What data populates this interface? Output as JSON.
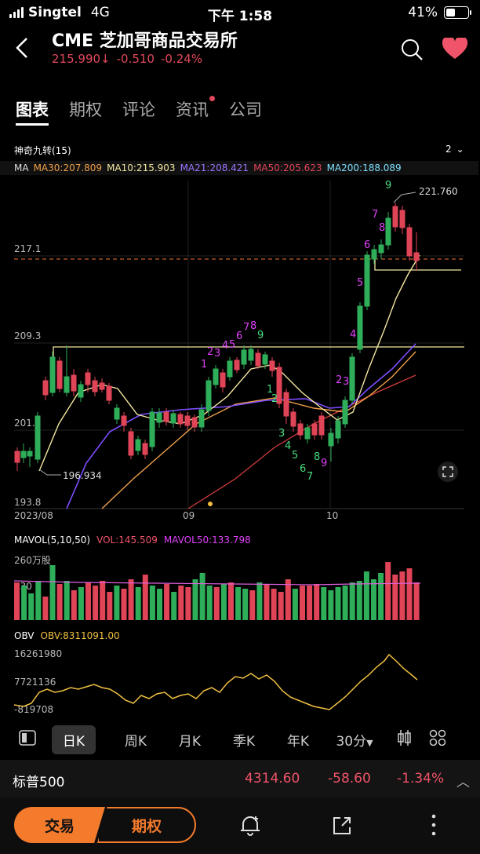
{
  "status": {
    "carrier": "Singtel",
    "network": "4G",
    "time": "下午 1:58",
    "battery": "41%",
    "battery_level": 0.41
  },
  "header": {
    "title": "CME 芝加哥商品交易所",
    "price": "215.990",
    "change": "-0.510",
    "change_pct": "-0.24%"
  },
  "tabs": [
    {
      "label": "图表"
    },
    {
      "label": "期权"
    },
    {
      "label": "评论"
    },
    {
      "label": "资讯"
    },
    {
      "label": "公司"
    }
  ],
  "indicator": {
    "name": "神奇九转(15)",
    "count": "2"
  },
  "ma": {
    "label": "MA",
    "ma30": "MA30:207.809",
    "ma10": "MA10:215.903",
    "ma21": "MA21:208.421",
    "ma50": "MA50:205.623",
    "ma200": "MA200:188.089"
  },
  "price_chart": {
    "y_ticks": [
      "217.1",
      "209.3",
      "201.6",
      "193.8"
    ],
    "x_ticks": [
      "2023/08",
      "09",
      "10"
    ],
    "high_label": "221.760",
    "low_label": "196.934",
    "colors": {
      "up": "#2fae5a",
      "down": "#e04457",
      "ma30": "#f0a04a",
      "ma10": "#f2e6a0",
      "ma21": "#7c4dff",
      "ma50": "#d23c3c"
    }
  },
  "volume": {
    "label": "MAVOL(5,10,50)",
    "vol": "VOL:145.509",
    "mavol50": "MAVOL50:133.798",
    "y_top": "260万股",
    "y_mid": "130"
  },
  "obv": {
    "label": "OBV",
    "value": "OBV:8311091.00",
    "y_ticks": [
      "16261980",
      "7721136",
      "-819708"
    ]
  },
  "periods": [
    "日K",
    "周K",
    "月K",
    "季K",
    "年K",
    "30分"
  ],
  "index": {
    "name": "标普500",
    "value": "4314.60",
    "change": "-58.60",
    "pct": "-1.34%"
  },
  "actions": {
    "trade": "交易",
    "option": "期权"
  }
}
